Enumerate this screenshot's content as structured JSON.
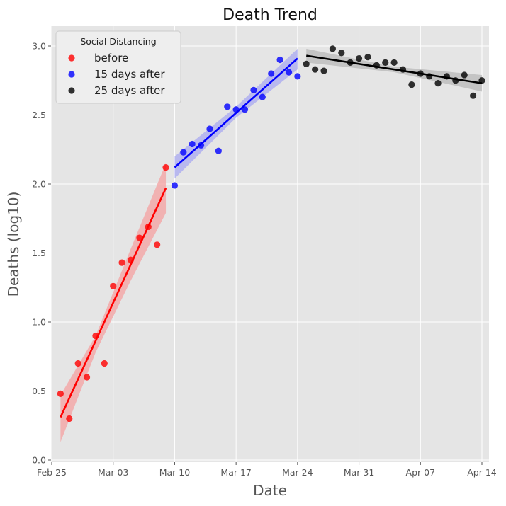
{
  "chart_data": {
    "type": "scatter",
    "title": "Death Trend",
    "xlabel": "Date",
    "ylabel": "Deaths (log10)",
    "x_axis_type": "date",
    "x_range": [
      "2020-02-25",
      "2020-04-14"
    ],
    "ylim": [
      0.0,
      3.15
    ],
    "x_ticks": [
      "2020-02-25",
      "2020-03-03",
      "2020-03-10",
      "2020-03-17",
      "2020-03-24",
      "2020-03-31",
      "2020-04-07",
      "2020-04-14"
    ],
    "x_tick_labels": [
      "Feb 25",
      "Mar 03",
      "Mar 10",
      "Mar 17",
      "Mar 24",
      "Mar 31",
      "Apr 07",
      "Apr 14"
    ],
    "y_ticks": [
      0.0,
      0.5,
      1.0,
      1.5,
      2.0,
      2.5,
      3.0
    ],
    "y_tick_labels": [
      "0.0",
      "0.5",
      "1.0",
      "1.5",
      "2.0",
      "2.5",
      "3.0"
    ],
    "grid": true,
    "background": "#e5e5e5",
    "legend": {
      "title": "Social Distancing",
      "placement": "top-left"
    },
    "series": [
      {
        "name": "before",
        "color": "#ff0000",
        "band_color": "#f4a0a0",
        "x": [
          "2020-02-26",
          "2020-02-27",
          "2020-02-28",
          "2020-02-29",
          "2020-03-01",
          "2020-03-02",
          "2020-03-03",
          "2020-03-04",
          "2020-03-05",
          "2020-03-06",
          "2020-03-07",
          "2020-03-08",
          "2020-03-09"
        ],
        "y": [
          0.48,
          0.3,
          0.7,
          0.6,
          0.9,
          0.7,
          1.26,
          1.43,
          1.45,
          1.61,
          1.69,
          1.56,
          2.12
        ],
        "fit": {
          "x": [
            "2020-02-26",
            "2020-03-09"
          ],
          "y": [
            0.31,
            1.97
          ]
        },
        "band": {
          "x": [
            "2020-02-26",
            "2020-03-01",
            "2020-03-05",
            "2020-03-09"
          ],
          "lower": [
            0.13,
            0.78,
            1.3,
            1.79
          ],
          "upper": [
            0.47,
            0.9,
            1.53,
            2.15
          ]
        }
      },
      {
        "name": "15 days after",
        "color": "#0000ff",
        "band_color": "#a8a8f0",
        "x": [
          "2020-03-10",
          "2020-03-11",
          "2020-03-12",
          "2020-03-13",
          "2020-03-14",
          "2020-03-15",
          "2020-03-16",
          "2020-03-17",
          "2020-03-18",
          "2020-03-19",
          "2020-03-20",
          "2020-03-21",
          "2020-03-22",
          "2020-03-23",
          "2020-03-24"
        ],
        "y": [
          1.99,
          2.23,
          2.29,
          2.28,
          2.4,
          2.24,
          2.56,
          2.54,
          2.54,
          2.68,
          2.63,
          2.8,
          2.9,
          2.81,
          2.78
        ],
        "fit": {
          "x": [
            "2020-03-10",
            "2020-03-24"
          ],
          "y": [
            2.12,
            2.91
          ]
        },
        "band": {
          "x": [
            "2020-03-10",
            "2020-03-17",
            "2020-03-24"
          ],
          "lower": [
            2.04,
            2.48,
            2.83
          ],
          "upper": [
            2.2,
            2.56,
            2.98
          ]
        }
      },
      {
        "name": "25 days after",
        "color": "#000000",
        "band_color": "#b8b8b8",
        "x": [
          "2020-03-25",
          "2020-03-26",
          "2020-03-27",
          "2020-03-28",
          "2020-03-29",
          "2020-03-30",
          "2020-03-31",
          "2020-04-01",
          "2020-04-02",
          "2020-04-03",
          "2020-04-04",
          "2020-04-05",
          "2020-04-06",
          "2020-04-07",
          "2020-04-08",
          "2020-04-09",
          "2020-04-10",
          "2020-04-11",
          "2020-04-12",
          "2020-04-13",
          "2020-04-14"
        ],
        "y": [
          2.87,
          2.83,
          2.82,
          2.98,
          2.95,
          2.88,
          2.91,
          2.92,
          2.86,
          2.88,
          2.88,
          2.83,
          2.72,
          2.8,
          2.78,
          2.73,
          2.78,
          2.75,
          2.79,
          2.64,
          2.75
        ],
        "fit": {
          "x": [
            "2020-03-25",
            "2020-04-14"
          ],
          "y": [
            2.93,
            2.73
          ]
        },
        "band": {
          "x": [
            "2020-03-25",
            "2020-04-04",
            "2020-04-14"
          ],
          "lower": [
            2.88,
            2.81,
            2.67
          ],
          "upper": [
            2.98,
            2.85,
            2.79
          ]
        }
      }
    ]
  }
}
